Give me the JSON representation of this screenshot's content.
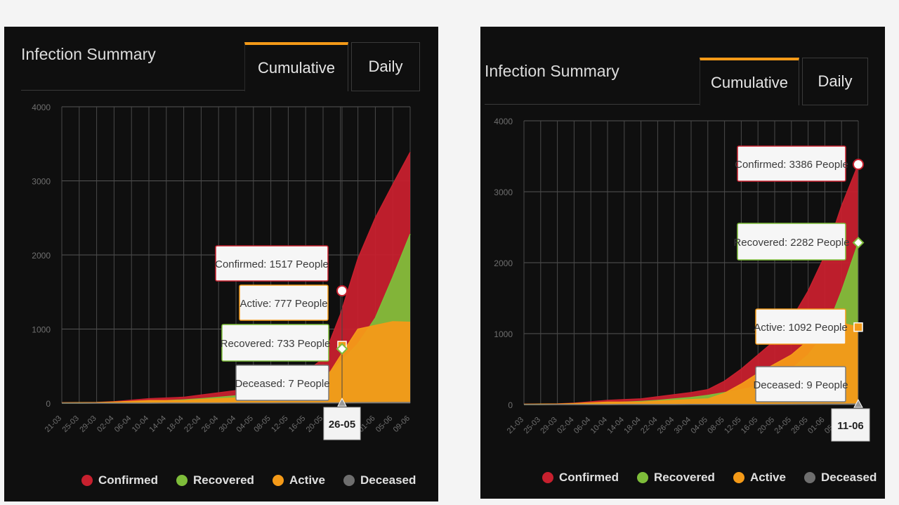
{
  "panels": [
    {
      "title": "Infection Summary",
      "tabs": [
        {
          "label": "Cumulative",
          "active": true
        },
        {
          "label": "Daily",
          "active": false
        }
      ],
      "chart_data": {
        "type": "area",
        "ylim": [
          0,
          4000
        ],
        "yticks": [
          0,
          1000,
          2000,
          3000,
          4000
        ],
        "x_labels": [
          "21-03",
          "25-03",
          "29-03",
          "02-04",
          "06-04",
          "10-04",
          "14-04",
          "18-04",
          "22-04",
          "26-04",
          "30-04",
          "04-05",
          "08-05",
          "12-05",
          "16-05",
          "20-05",
          "24-05",
          "28-05",
          "01-06",
          "05-06",
          "09-06"
        ],
        "series": [
          {
            "name": "Confirmed",
            "color": "#c7202e",
            "values": [
              5,
              7,
              10,
              20,
              40,
              60,
              70,
              80,
              110,
              140,
              170,
              210,
              260,
              330,
              420,
              600,
              1200,
              1950,
              2500,
              2950,
              3386
            ]
          },
          {
            "name": "Recovered",
            "color": "#7ebd3a",
            "values": [
              0,
              0,
              2,
              5,
              15,
              25,
              35,
              45,
              60,
              80,
              100,
              130,
              170,
              210,
              260,
              330,
              560,
              800,
              1150,
              1700,
              2282
            ]
          },
          {
            "name": "Active",
            "color": "#f49a18",
            "values": [
              5,
              7,
              8,
              15,
              25,
              35,
              35,
              35,
              50,
              60,
              70,
              80,
              90,
              120,
              160,
              270,
              640,
              1000,
              1050,
              1100,
              1092
            ]
          },
          {
            "name": "Deceased",
            "color": "#7a7a7a",
            "values": [
              0,
              0,
              0,
              0,
              0,
              0,
              1,
              1,
              1,
              1,
              2,
              2,
              2,
              3,
              3,
              4,
              5,
              7,
              8,
              9,
              9
            ]
          }
        ],
        "hover_label": "26-05",
        "hover_value": 1517,
        "tooltips": [
          {
            "text": "Confirmed: 1517 People",
            "series": "Confirmed",
            "value": 1517
          },
          {
            "text": "Active: 777 People",
            "series": "Active",
            "value": 777
          },
          {
            "text": "Recovered: 733 People",
            "series": "Recovered",
            "value": 733
          },
          {
            "text": "Deceased: 7 People",
            "series": "Deceased",
            "value": 7
          }
        ]
      }
    },
    {
      "title": "Infection Summary",
      "tabs": [
        {
          "label": "Cumulative",
          "active": true
        },
        {
          "label": "Daily",
          "active": false
        }
      ],
      "chart_data": {
        "type": "area",
        "ylim": [
          0,
          4000
        ],
        "yticks": [
          0,
          1000,
          2000,
          3000,
          4000
        ],
        "x_labels": [
          "21-03",
          "25-03",
          "29-03",
          "02-04",
          "06-04",
          "10-04",
          "14-04",
          "18-04",
          "22-04",
          "26-04",
          "30-04",
          "04-05",
          "08-05",
          "12-05",
          "16-05",
          "20-05",
          "24-05",
          "28-05",
          "01-06",
          "05-06",
          "09-06"
        ],
        "series": [
          {
            "name": "Confirmed",
            "color": "#c7202e",
            "values": [
              5,
              7,
              10,
              20,
              40,
              60,
              70,
              80,
              110,
              140,
              170,
              210,
              330,
              500,
              700,
              900,
              1200,
              1600,
              2100,
              2800,
              3386
            ]
          },
          {
            "name": "Recovered",
            "color": "#7ebd3a",
            "values": [
              0,
              0,
              2,
              5,
              15,
              25,
              35,
              45,
              60,
              80,
              100,
              130,
              170,
              210,
              260,
              330,
              500,
              700,
              1000,
              1600,
              2282
            ]
          },
          {
            "name": "Active",
            "color": "#f49a18",
            "values": [
              5,
              7,
              8,
              15,
              25,
              35,
              35,
              35,
              50,
              60,
              70,
              80,
              160,
              290,
              440,
              570,
              700,
              900,
              1000,
              1150,
              1092
            ]
          },
          {
            "name": "Deceased",
            "color": "#7a7a7a",
            "values": [
              0,
              0,
              0,
              0,
              0,
              0,
              1,
              1,
              1,
              1,
              2,
              2,
              2,
              3,
              3,
              4,
              5,
              6,
              7,
              8,
              9
            ]
          }
        ],
        "hover_label": "11-06",
        "hover_value": 3386,
        "tooltips": [
          {
            "text": "Confirmed: 3386 People",
            "series": "Confirmed",
            "value": 3386
          },
          {
            "text": "Recovered: 2282 People",
            "series": "Recovered",
            "value": 2282
          },
          {
            "text": "Active: 1092 People",
            "series": "Active",
            "value": 1092
          },
          {
            "text": "Deceased: 9 People",
            "series": "Deceased",
            "value": 9
          }
        ]
      }
    }
  ]
}
